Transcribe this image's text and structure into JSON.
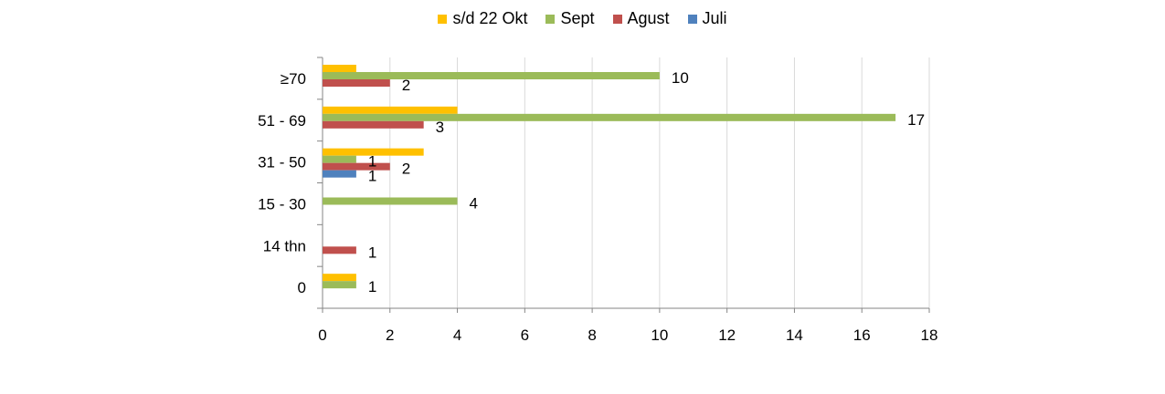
{
  "chart_data": {
    "type": "bar",
    "orientation": "horizontal",
    "categories": [
      "≥70",
      "51 - 69",
      "31 - 50",
      "15 - 30",
      "14 thn",
      "0"
    ],
    "series": [
      {
        "name": "s/d 22 Okt",
        "color": "#FFC000",
        "values": [
          1,
          4,
          3,
          0,
          0,
          1
        ]
      },
      {
        "name": "Sept",
        "color": "#9BBB59",
        "values": [
          10,
          17,
          1,
          4,
          0,
          1
        ]
      },
      {
        "name": "Agust",
        "color": "#C0504D",
        "values": [
          2,
          3,
          2,
          0,
          1,
          0
        ]
      },
      {
        "name": "Juli",
        "color": "#4F81BD",
        "values": [
          0,
          0,
          1,
          0,
          0,
          0
        ]
      }
    ],
    "data_labels": [
      {
        "category": "≥70",
        "series": "Sept",
        "text": "10"
      },
      {
        "category": "≥70",
        "series": "Agust",
        "text": "2"
      },
      {
        "category": "51 - 69",
        "series": "Sept",
        "text": "17"
      },
      {
        "category": "51 - 69",
        "series": "Agust",
        "text": "3"
      },
      {
        "category": "31 - 50",
        "series": "Sept",
        "text": "1"
      },
      {
        "category": "31 - 50",
        "series": "Agust",
        "text": "2"
      },
      {
        "category": "31 - 50",
        "series": "Juli",
        "text": "1"
      },
      {
        "category": "15 - 30",
        "series": "Sept",
        "text": "4"
      },
      {
        "category": "14 thn",
        "series": "Agust",
        "text": "1"
      },
      {
        "category": "0",
        "series": "Sept",
        "text": "1"
      }
    ],
    "xlim": [
      0,
      18
    ],
    "x_ticks": [
      "0",
      "2",
      "4",
      "6",
      "8",
      "10",
      "12",
      "14",
      "16",
      "18"
    ],
    "grid": "vertical",
    "legend_position": "top",
    "title": "",
    "xlabel": "",
    "ylabel": ""
  }
}
